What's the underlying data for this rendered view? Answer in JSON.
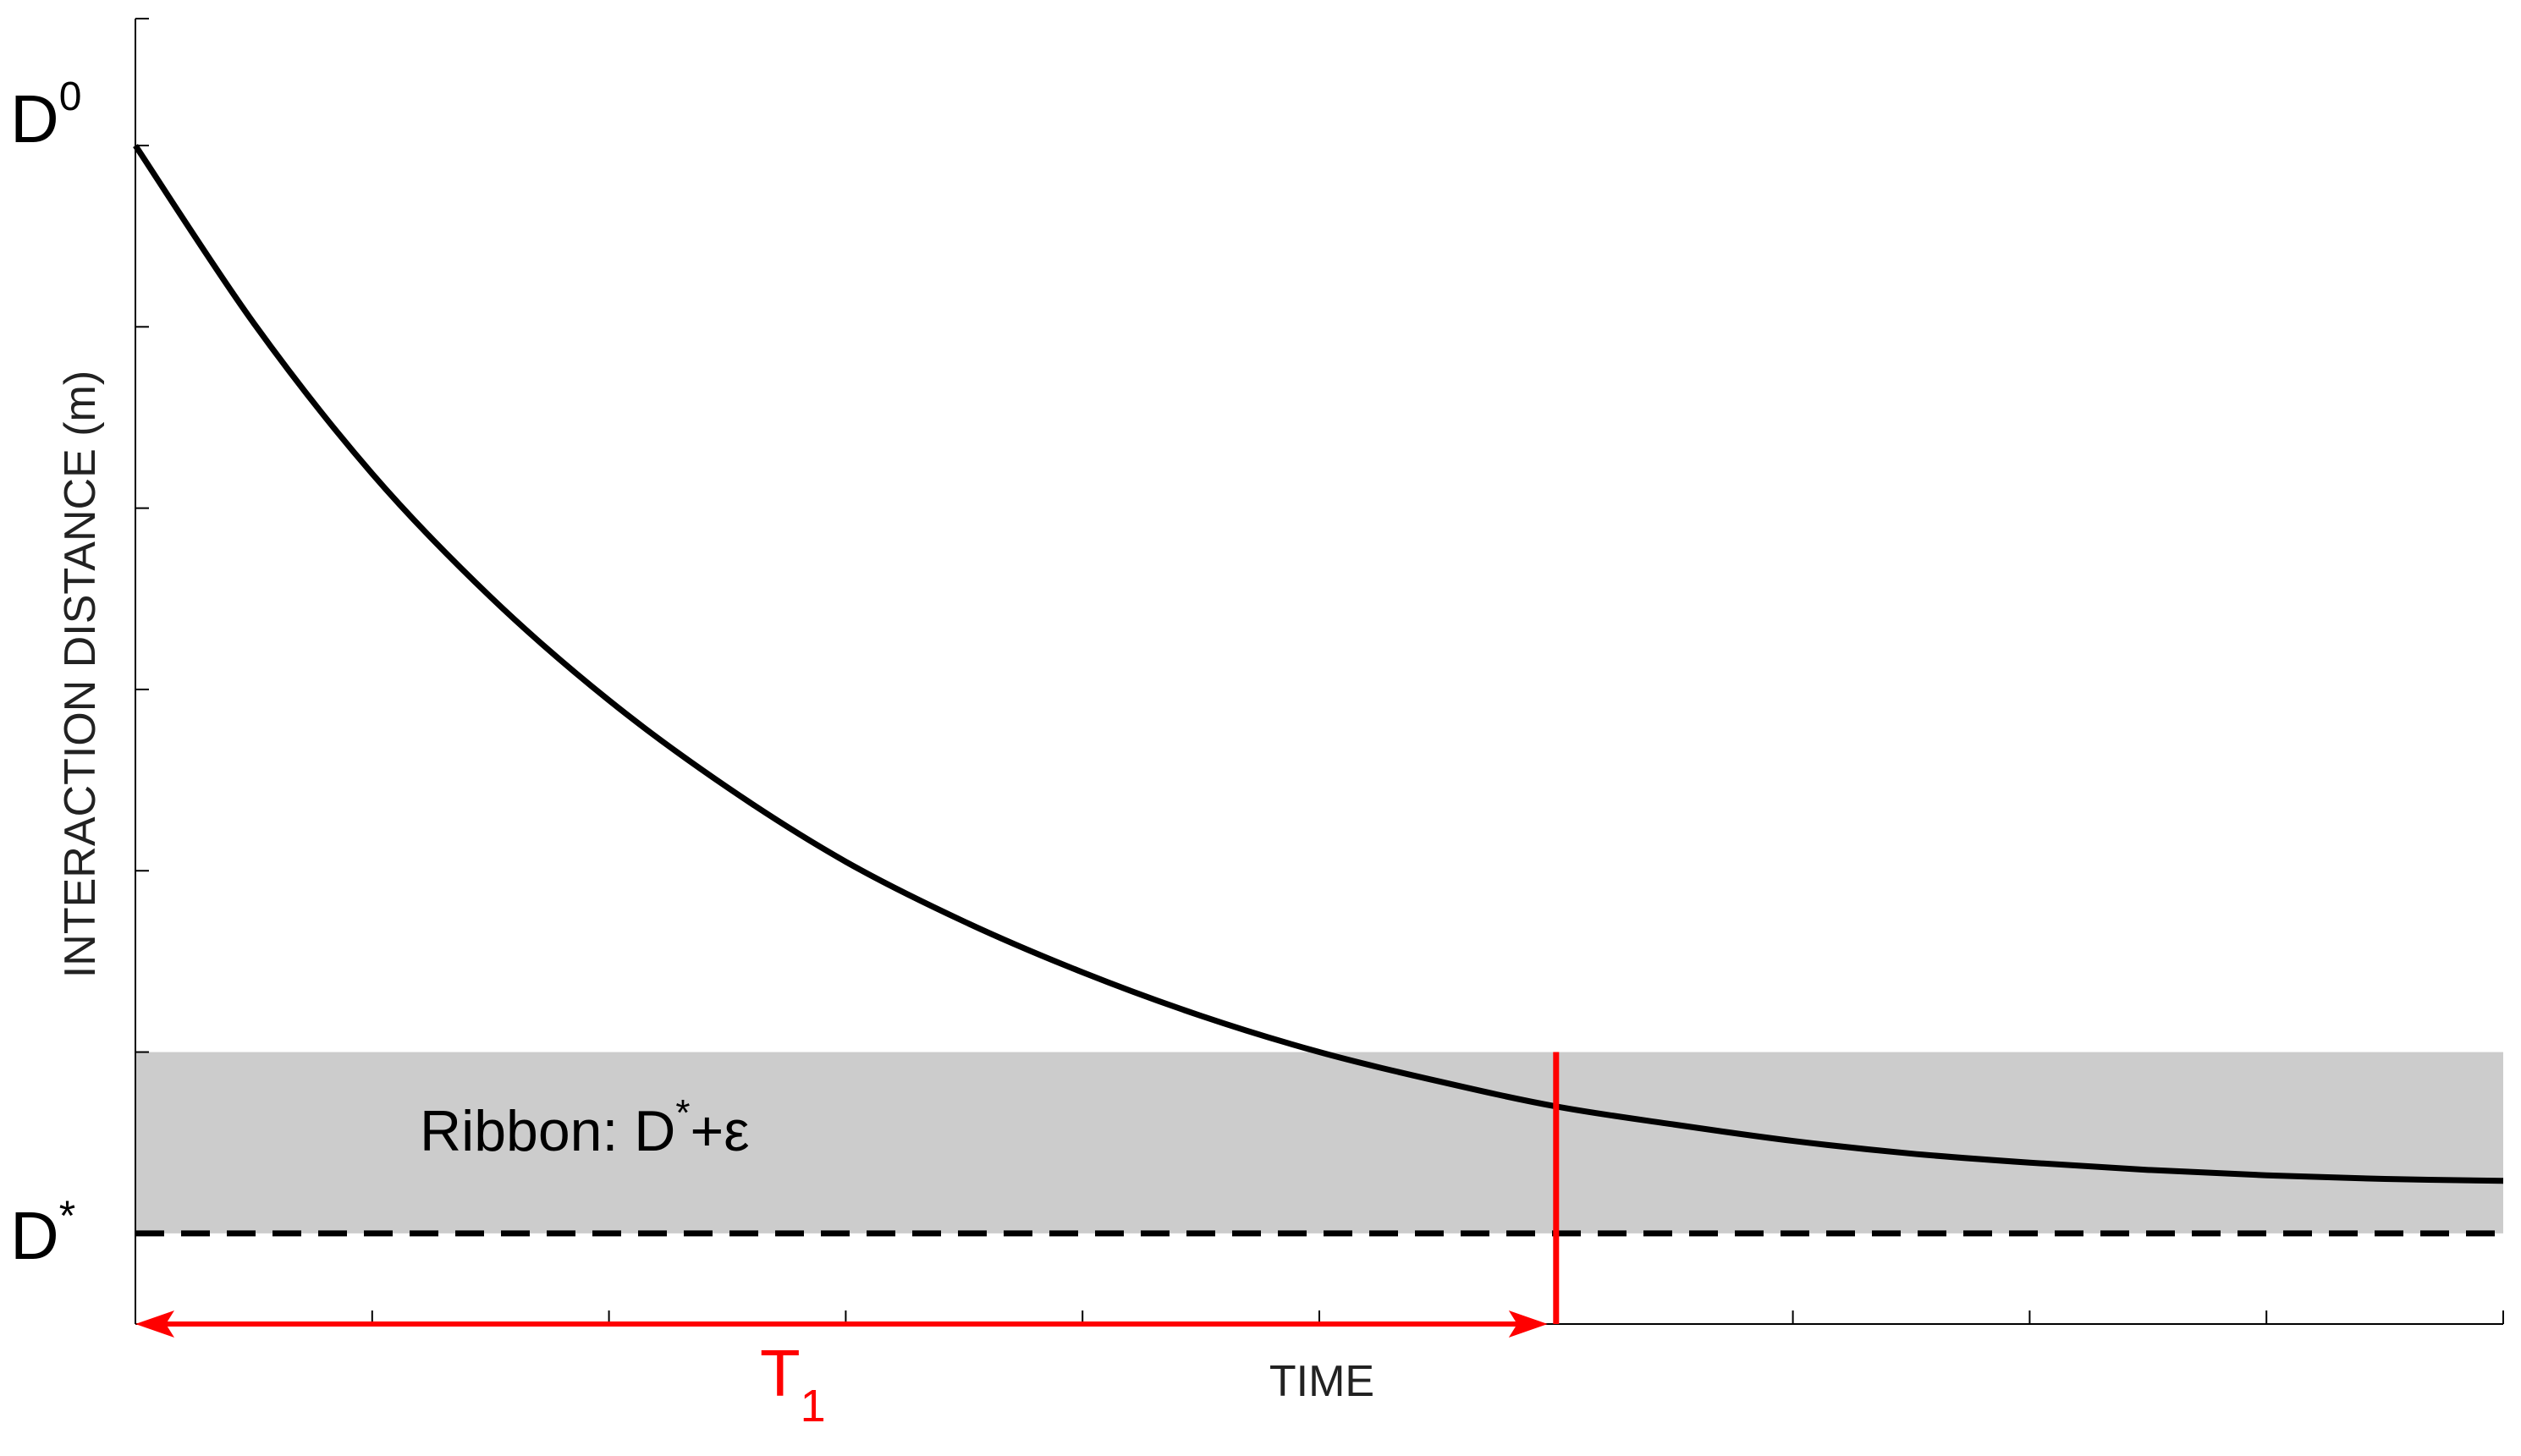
{
  "chart_data": {
    "type": "line",
    "title": "",
    "xlabel": "TIME",
    "ylabel": "INTERACTION DISTANCE (m)",
    "xlim": [
      0,
      10
    ],
    "ylim": [
      -0.5,
      6.7
    ],
    "ytick_values": [
      0,
      1,
      2,
      3,
      4,
      5,
      6
    ],
    "xtick_values": [
      0,
      1,
      2,
      3,
      4,
      5,
      6,
      7,
      8,
      9,
      10
    ],
    "grid": false,
    "series": [
      {
        "color": "#000000",
        "style": "solid",
        "x": [
          0,
          0.5,
          1,
          1.5,
          2,
          2.5,
          3,
          3.5,
          4,
          4.5,
          5,
          5.5,
          6,
          6,
          6.5,
          7,
          7.5,
          8,
          8.5,
          9,
          9.5,
          10
        ],
        "y": [
          6.0,
          5.02,
          4.19,
          3.51,
          2.94,
          2.46,
          2.05,
          1.72,
          1.44,
          1.2,
          1.0,
          0.84,
          0.7,
          0.7,
          0.6,
          0.51,
          0.44,
          0.39,
          0.35,
          0.32,
          0.3,
          0.29
        ]
      }
    ],
    "reference_lines": [
      {
        "label": "D*",
        "axis": "y",
        "value": 0,
        "style": "dashed",
        "color": "#000000"
      }
    ],
    "bands": [
      {
        "axis": "y",
        "from": 0,
        "to": 1.0,
        "color": "#cccccc"
      }
    ],
    "markers": [
      {
        "axis": "x",
        "value": 6.0,
        "from": -0.5,
        "to": 1.0,
        "color": "#ff0000",
        "style": "solid"
      }
    ],
    "arrows": [
      {
        "y": -0.5,
        "x_from": 0,
        "x_to": 6.0,
        "color": "#ff0000",
        "style": "double-headed"
      }
    ],
    "annotations": {
      "y_top_label": {
        "base": "D",
        "sup": "0"
      },
      "y_ref_label": {
        "base": "D",
        "sup": "*"
      },
      "band_label": {
        "text": "Ribbon: D",
        "sup": "*",
        "suffix": "+ε"
      },
      "t1_label": {
        "base": "T",
        "sub": "1"
      }
    }
  }
}
